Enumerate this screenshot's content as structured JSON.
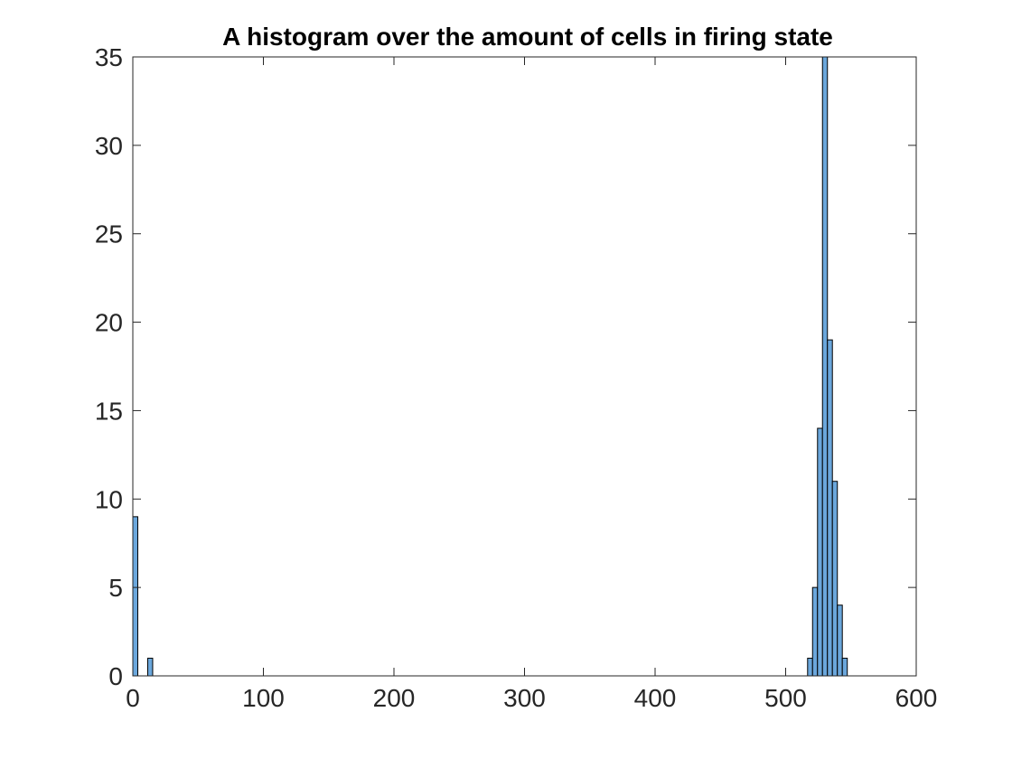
{
  "chart_data": {
    "type": "bar",
    "title": "A histogram over the amount of cells in firing state",
    "xlabel": "",
    "ylabel": "",
    "xlim": [
      0,
      600
    ],
    "ylim": [
      0,
      35
    ],
    "xticks": [
      0,
      100,
      200,
      300,
      400,
      500,
      600
    ],
    "yticks": [
      0,
      5,
      10,
      15,
      20,
      25,
      30,
      35
    ],
    "bin_width": 3.8,
    "bins": [
      {
        "x0": 0.0,
        "value": 9
      },
      {
        "x0": 11.4,
        "value": 1
      },
      {
        "x0": 516.8,
        "value": 1
      },
      {
        "x0": 520.6,
        "value": 5
      },
      {
        "x0": 524.4,
        "value": 14
      },
      {
        "x0": 528.2,
        "value": 35
      },
      {
        "x0": 532.0,
        "value": 19
      },
      {
        "x0": 535.8,
        "value": 11
      },
      {
        "x0": 539.6,
        "value": 4
      },
      {
        "x0": 543.4,
        "value": 1
      }
    ],
    "bar_color": "#6ba7dc",
    "edge_color": "#000000",
    "grid": false,
    "legend": null
  }
}
